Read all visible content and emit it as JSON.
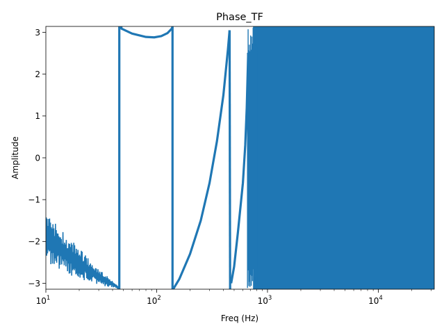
{
  "chart_data": {
    "type": "line",
    "title": "Phase_TF",
    "xlabel": "Freq (Hz)",
    "ylabel": "Amplitude",
    "xscale": "log",
    "xlim": [
      10,
      32000
    ],
    "ylim": [
      -3.14159,
      3.14159
    ],
    "grid": false,
    "legend": "none",
    "x_ticks": [
      {
        "value": 10,
        "base": "10",
        "exp": "1"
      },
      {
        "value": 100,
        "base": "10",
        "exp": "2"
      },
      {
        "value": 1000,
        "base": "10",
        "exp": "3"
      },
      {
        "value": 10000,
        "base": "10",
        "exp": "4"
      }
    ],
    "y_ticks": [
      {
        "value": 3,
        "label": "3"
      },
      {
        "value": 2,
        "label": "2"
      },
      {
        "value": 1,
        "label": "1"
      },
      {
        "value": 0,
        "label": "0"
      },
      {
        "value": -1,
        "label": "−1"
      },
      {
        "value": -2,
        "label": "−2"
      },
      {
        "value": -3,
        "label": "−3"
      }
    ],
    "series": [
      {
        "color": "#1f77b4",
        "segments": [
          {
            "kind": "noisy-band",
            "upper": [
              [
                10,
                -1.3
              ],
              [
                15,
                -1.8
              ],
              [
                20,
                -2.15
              ],
              [
                30,
                -2.65
              ],
              [
                40,
                -2.95
              ],
              [
                46,
                -3.08
              ]
            ],
            "lower": [
              [
                10,
                -2.5
              ],
              [
                15,
                -2.75
              ],
              [
                20,
                -2.9
              ],
              [
                30,
                -3.05
              ],
              [
                40,
                -3.1
              ],
              [
                46,
                -3.14
              ]
            ]
          },
          {
            "kind": "curve",
            "points": [
              [
                46,
                -3.14
              ],
              [
                46,
                3.14
              ]
            ]
          },
          {
            "kind": "curve",
            "points": [
              [
                48,
                3.14
              ],
              [
                48,
                3.09
              ],
              [
                60,
                2.97
              ],
              [
                80,
                2.89
              ],
              [
                95,
                2.88
              ],
              [
                110,
                2.91
              ],
              [
                125,
                2.98
              ],
              [
                137,
                3.09
              ],
              [
                139,
                3.14
              ]
            ]
          },
          {
            "kind": "curve",
            "points": [
              [
                139,
                3.14
              ],
              [
                139,
                -3.14
              ]
            ]
          },
          {
            "kind": "curve",
            "points": [
              [
                141,
                -3.14
              ],
              [
                160,
                -2.9
              ],
              [
                200,
                -2.3
              ],
              [
                250,
                -1.5
              ],
              [
                300,
                -0.6
              ],
              [
                350,
                0.4
              ],
              [
                400,
                1.5
              ],
              [
                440,
                2.6
              ],
              [
                455,
                3.05
              ]
            ]
          },
          {
            "kind": "curve",
            "points": [
              [
                455,
                3.05
              ],
              [
                460,
                -3.14
              ]
            ]
          },
          {
            "kind": "curve",
            "points": [
              [
                470,
                -3.0
              ],
              [
                500,
                -2.6
              ],
              [
                540,
                -1.8
              ],
              [
                600,
                -0.6
              ],
              [
                630,
                0.3
              ],
              [
                650,
                1.2
              ],
              [
                670,
                2.5
              ]
            ]
          },
          {
            "kind": "dense-fill",
            "from": 660,
            "to": 32000,
            "ylow": -3.14,
            "yhigh": 3.14
          }
        ]
      }
    ]
  }
}
